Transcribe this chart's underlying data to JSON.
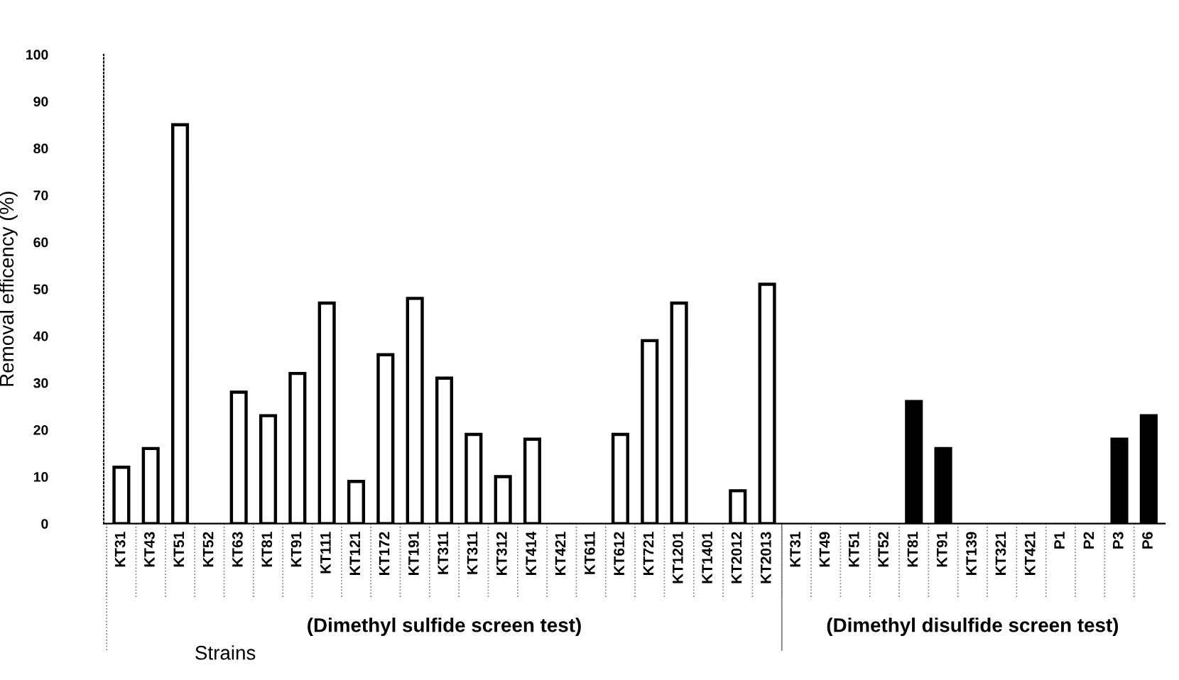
{
  "chart_data": {
    "type": "bar",
    "ylabel": "Removal efficency (%)",
    "xlabel": "Strains",
    "categories": [
      "KT31",
      "KT43",
      "KT51",
      "KT52",
      "KT63",
      "KT81",
      "KT91",
      "KT111",
      "KT121",
      "KT172",
      "KT191",
      "KT311",
      "KT311",
      "KT312",
      "KT414",
      "KT421",
      "KT611",
      "KT612",
      "KT721",
      "KT1201",
      "KT1401",
      "KT2012",
      "KT2013",
      "KT31",
      "KT49",
      "KT51",
      "KT52",
      "KT81",
      "KT91",
      "KT139",
      "KT321",
      "KT421",
      "P1",
      "P2",
      "P3",
      "P6"
    ],
    "series": [
      {
        "color": "#ffffff",
        "values": [
          12,
          16,
          85,
          null,
          28,
          23,
          32,
          47,
          9,
          36,
          48,
          31,
          19,
          10,
          18,
          null,
          null,
          19,
          39,
          47,
          null,
          7,
          51,
          null,
          null,
          null,
          null,
          null,
          null,
          null,
          null,
          null,
          null,
          null,
          null,
          null
        ]
      },
      {
        "color": "#000000",
        "values": [
          null,
          null,
          null,
          null,
          null,
          null,
          null,
          null,
          null,
          null,
          null,
          null,
          null,
          null,
          null,
          null,
          null,
          null,
          null,
          null,
          null,
          null,
          null,
          null,
          null,
          null,
          null,
          26,
          16,
          null,
          null,
          null,
          null,
          null,
          18,
          23
        ]
      }
    ],
    "annotations": [
      "(Dimethyl sulfide screen test)",
      "(Dimethyl disulfide screen test)"
    ],
    "ylim": [
      0,
      100
    ],
    "yticks": [
      0,
      10,
      20,
      30,
      40,
      50,
      60,
      70,
      80,
      90,
      100
    ],
    "grid": false,
    "legend": false
  }
}
